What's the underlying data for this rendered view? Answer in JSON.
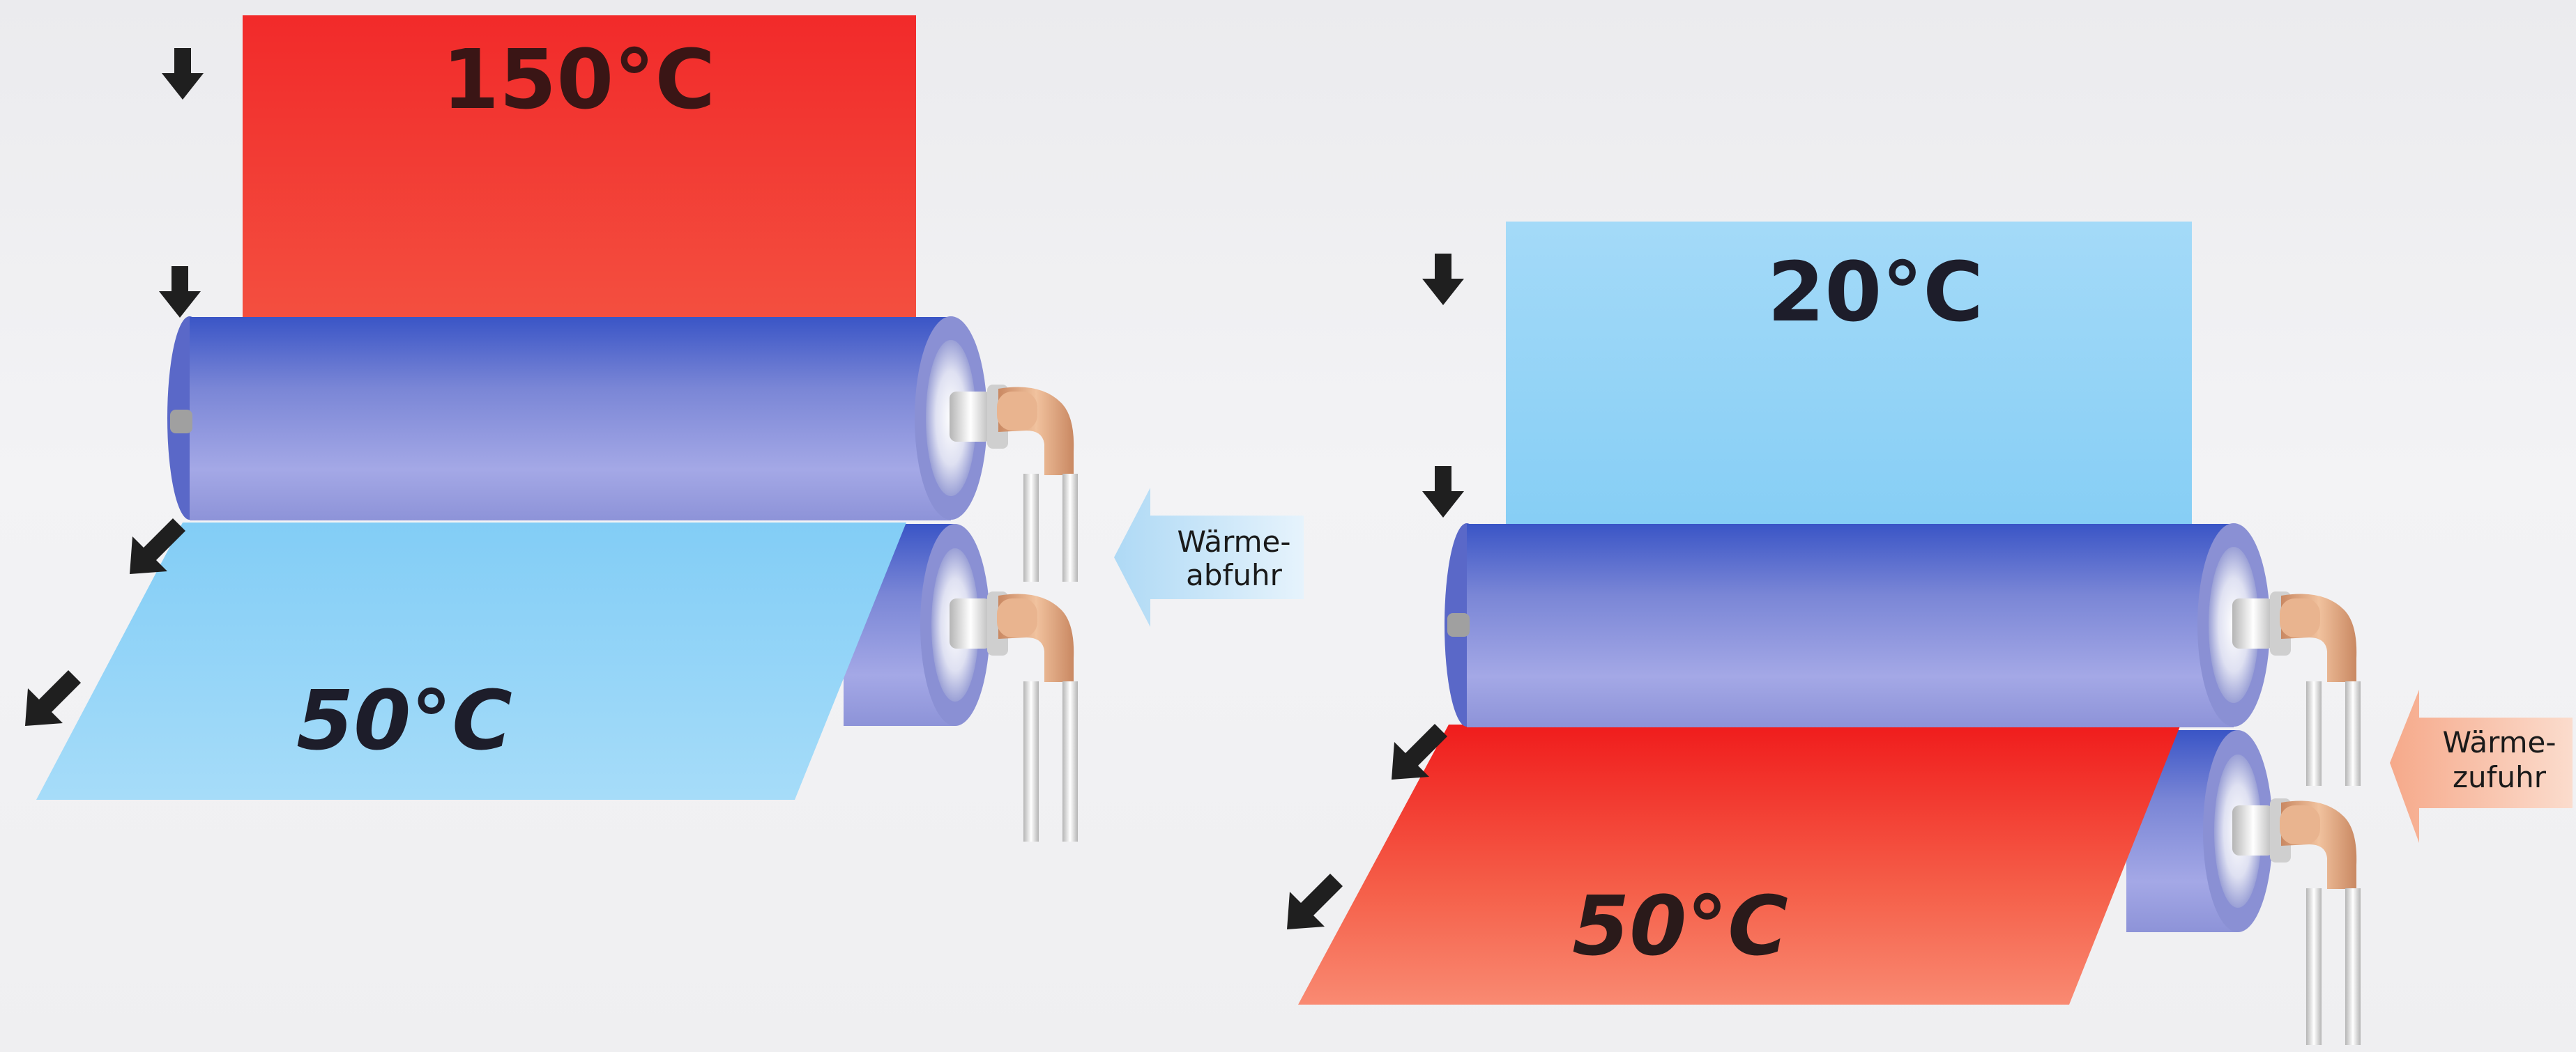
{
  "cooling_scene": {
    "web_in_temp": "150°C",
    "web_out_temp": "50°C",
    "flow_label_line1": "Wärme-",
    "flow_label_line2": "abfuhr"
  },
  "heating_scene": {
    "web_in_temp": "20°C",
    "web_out_temp": "50°C",
    "flow_label_line1": "Wärme-",
    "flow_label_line2": "zufuhr"
  },
  "colors": {
    "hot": "#f22b2b",
    "cool": "#8fd2f7",
    "roller": "#7b87d6",
    "arrow": "#1f1f1f",
    "pipe": "#e2a67e",
    "heat_out_arrow": "#bfe3f8",
    "heat_in_arrow": "#f8bfa8"
  }
}
